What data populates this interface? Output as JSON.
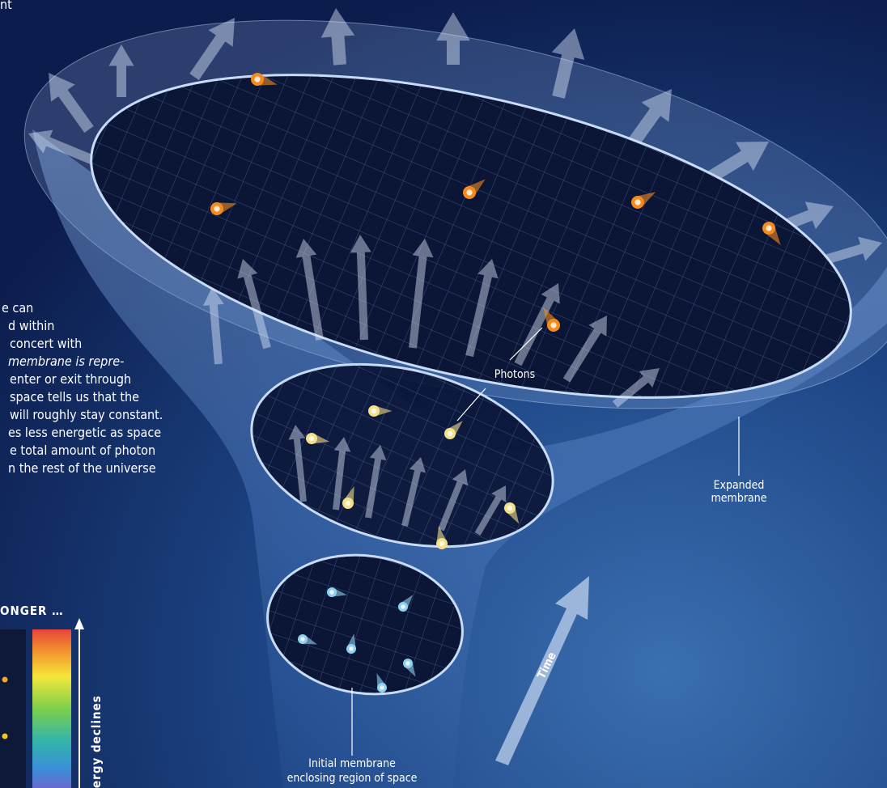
{
  "header": {
    "fragment": "nt"
  },
  "body_text": {
    "lines": [
      "e can",
      "d within",
      "concert with",
      "membrane is repre-",
      "enter or exit through",
      "space tells us that the",
      "will roughly stay constant.",
      "es less energetic as space",
      "e total amount of photon",
      "n the rest of the universe"
    ]
  },
  "sidebar": {
    "heading": "ONGER …",
    "axis_label": "ergy declines"
  },
  "labels": {
    "photons": "Photons",
    "expanded": [
      "Expanded",
      "membrane"
    ],
    "initial": [
      "Initial membrane",
      "enclosing region of space"
    ],
    "time": "Time"
  }
}
